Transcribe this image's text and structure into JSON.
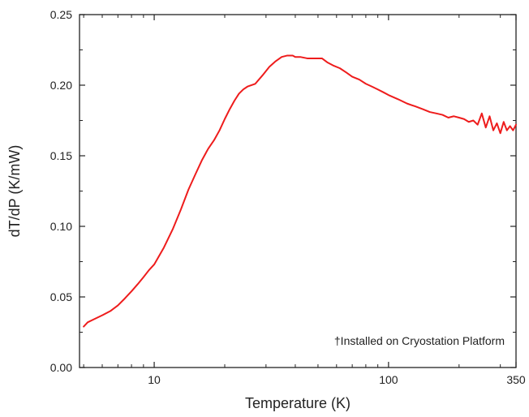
{
  "chart_data": {
    "type": "line",
    "xlabel": "Temperature (K)",
    "ylabel": "dT/dP (K/mW)",
    "x_scale": "log",
    "xlim": [
      4.8,
      350
    ],
    "ylim": [
      0.0,
      0.25
    ],
    "x_ticks": [
      {
        "value": 10,
        "label": "10"
      },
      {
        "value": 100,
        "label": "100"
      },
      {
        "value": 350,
        "label": "350"
      }
    ],
    "y_ticks": [
      {
        "value": 0.0,
        "label": "0.00"
      },
      {
        "value": 0.05,
        "label": "0.05"
      },
      {
        "value": 0.1,
        "label": "0.10"
      },
      {
        "value": 0.15,
        "label": "0.15"
      },
      {
        "value": 0.2,
        "label": "0.20"
      },
      {
        "value": 0.25,
        "label": "0.25"
      }
    ],
    "annotation": "†Installed on Cryostation Platform",
    "grid": false,
    "legend": "none",
    "series": [
      {
        "color": "#ee1c1c",
        "x": [
          5.0,
          5.2,
          5.5,
          6.0,
          6.5,
          7.0,
          7.5,
          8.0,
          8.5,
          9.0,
          9.5,
          10.0,
          11.0,
          12.0,
          13.0,
          14.0,
          15.0,
          16.0,
          17.0,
          18.0,
          19.0,
          20.0,
          21.0,
          22.0,
          23.0,
          24.0,
          25.0,
          27.0,
          29.0,
          31.0,
          33.0,
          35.0,
          37.0,
          39.0,
          40.0,
          42.0,
          45.0,
          48.0,
          52.0,
          55.0,
          58.0,
          62.0,
          66.0,
          70.0,
          75.0,
          80.0,
          85.0,
          90.0,
          95.0,
          100.0,
          110.0,
          120.0,
          130.0,
          140.0,
          150.0,
          160.0,
          170.0,
          180.0,
          190.0,
          200.0,
          210.0,
          220.0,
          230.0,
          240.0,
          250.0,
          260.0,
          270.0,
          280.0,
          290.0,
          300.0,
          310.0,
          320.0,
          330.0,
          340.0,
          350.0
        ],
        "y": [
          0.029,
          0.032,
          0.034,
          0.037,
          0.04,
          0.044,
          0.049,
          0.054,
          0.059,
          0.064,
          0.069,
          0.073,
          0.085,
          0.098,
          0.112,
          0.126,
          0.137,
          0.147,
          0.155,
          0.161,
          0.168,
          0.176,
          0.183,
          0.189,
          0.194,
          0.197,
          0.199,
          0.201,
          0.207,
          0.213,
          0.217,
          0.22,
          0.221,
          0.221,
          0.22,
          0.22,
          0.219,
          0.219,
          0.219,
          0.216,
          0.214,
          0.212,
          0.209,
          0.206,
          0.204,
          0.201,
          0.199,
          0.197,
          0.195,
          0.193,
          0.19,
          0.187,
          0.185,
          0.183,
          0.181,
          0.18,
          0.179,
          0.177,
          0.178,
          0.177,
          0.176,
          0.174,
          0.175,
          0.172,
          0.18,
          0.17,
          0.178,
          0.168,
          0.173,
          0.166,
          0.174,
          0.168,
          0.171,
          0.168,
          0.172
        ]
      }
    ]
  }
}
